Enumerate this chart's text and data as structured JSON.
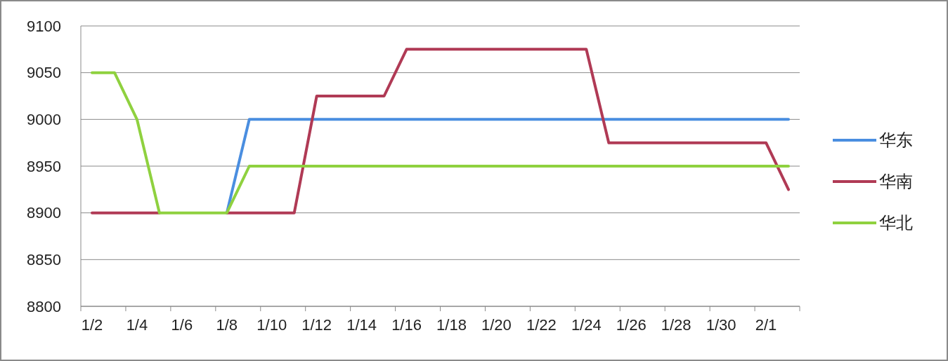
{
  "chart_data": {
    "type": "line",
    "categories": [
      "1/2",
      null,
      "1/4",
      null,
      "1/6",
      null,
      "1/8",
      null,
      "1/10",
      null,
      "1/12",
      null,
      "1/14",
      null,
      "1/16",
      null,
      "1/18",
      null,
      "1/20",
      null,
      "1/22",
      null,
      "1/24",
      null,
      "1/26",
      null,
      "1/28",
      null,
      "1/30",
      null,
      "2/1",
      null
    ],
    "series": [
      {
        "name": "华东",
        "color": "#4a8ee0",
        "values": [
          null,
          null,
          null,
          null,
          null,
          null,
          8900,
          9000,
          9000,
          9000,
          9000,
          9000,
          9000,
          9000,
          9000,
          9000,
          9000,
          9000,
          9000,
          9000,
          9000,
          9000,
          9000,
          9000,
          9000,
          9000,
          9000,
          9000,
          9000,
          9000,
          9000,
          9000
        ]
      },
      {
        "name": "华南",
        "color": "#b03a55",
        "values": [
          8900,
          8900,
          8900,
          8900,
          null,
          null,
          8900,
          8900,
          8900,
          8900,
          9025,
          9025,
          9025,
          9025,
          9075,
          9075,
          9075,
          9075,
          9075,
          9075,
          9075,
          9075,
          9075,
          8975,
          8975,
          8975,
          8975,
          8975,
          8975,
          8975,
          8975,
          8925
        ]
      },
      {
        "name": "华北",
        "color": "#8fd13f",
        "values": [
          9050,
          9050,
          9000,
          8900,
          8900,
          8900,
          8900,
          8950,
          8950,
          8950,
          8950,
          8950,
          8950,
          8950,
          8950,
          8950,
          8950,
          8950,
          8950,
          8950,
          8950,
          8950,
          8950,
          8950,
          8950,
          8950,
          8950,
          8950,
          8950,
          8950,
          8950,
          8950
        ]
      }
    ],
    "ylim": [
      8800,
      9100
    ],
    "yticks": [
      8800,
      8850,
      8900,
      8950,
      9000,
      9050,
      9100
    ],
    "grid": "y",
    "legend": "right",
    "marker": "none",
    "line_style": "solid"
  }
}
